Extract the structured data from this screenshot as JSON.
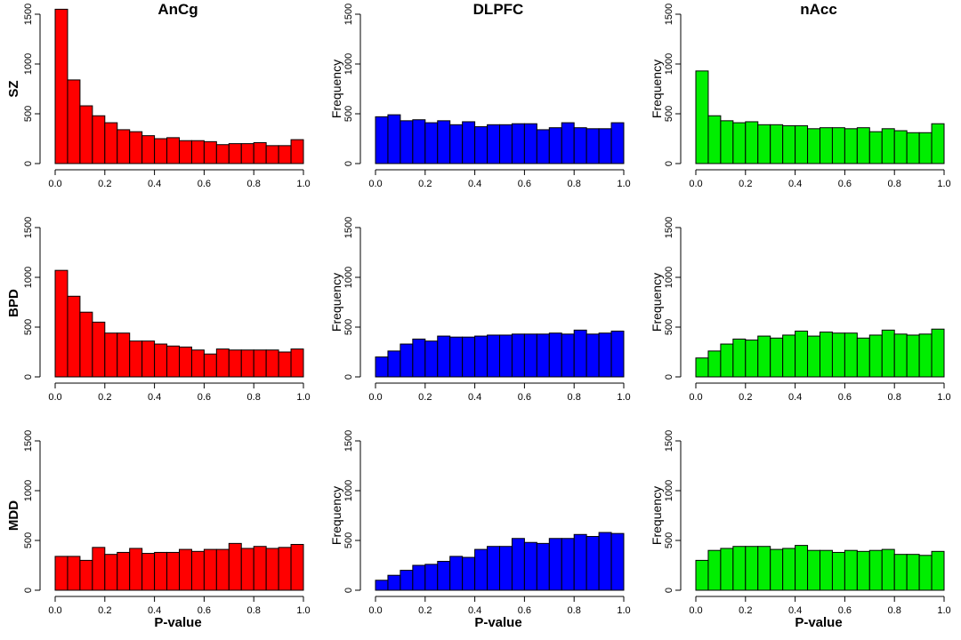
{
  "figure": {
    "column_titles": [
      "AnCg",
      "DLPFC",
      "nAcc"
    ],
    "row_labels": [
      "SZ",
      "BPD",
      "MDD"
    ],
    "xlabel": "P-value",
    "ylabel": "Frequency",
    "x_ticks": [
      "0.0",
      "0.2",
      "0.4",
      "0.6",
      "0.8",
      "1.0"
    ],
    "y_ticks": [
      "0",
      "500",
      "1000",
      "1500"
    ],
    "colors": {
      "AnCg": "#ff0000",
      "DLPFC": "#0000ff",
      "nAcc": "#00ee00"
    }
  },
  "chart_data": [
    {
      "type": "bar",
      "row": "SZ",
      "column": "AnCg",
      "color": "#ff0000",
      "xlim": [
        0,
        1
      ],
      "ylim": [
        0,
        1500
      ],
      "bin_width": 0.05,
      "values": [
        1550,
        840,
        580,
        480,
        410,
        340,
        320,
        280,
        250,
        260,
        230,
        230,
        220,
        190,
        200,
        200,
        210,
        180,
        180,
        240
      ]
    },
    {
      "type": "bar",
      "row": "SZ",
      "column": "DLPFC",
      "color": "#0000ff",
      "xlim": [
        0,
        1
      ],
      "ylim": [
        0,
        1500
      ],
      "bin_width": 0.05,
      "values": [
        470,
        490,
        430,
        440,
        410,
        430,
        390,
        420,
        370,
        390,
        390,
        400,
        400,
        340,
        360,
        410,
        360,
        350,
        350,
        410
      ]
    },
    {
      "type": "bar",
      "row": "SZ",
      "column": "nAcc",
      "color": "#00ee00",
      "xlim": [
        0,
        1
      ],
      "ylim": [
        0,
        1500
      ],
      "bin_width": 0.05,
      "values": [
        930,
        480,
        430,
        410,
        420,
        390,
        390,
        380,
        380,
        350,
        360,
        360,
        350,
        360,
        320,
        350,
        330,
        310,
        310,
        400
      ]
    },
    {
      "type": "bar",
      "row": "BPD",
      "column": "AnCg",
      "color": "#ff0000",
      "xlim": [
        0,
        1
      ],
      "ylim": [
        0,
        1500
      ],
      "bin_width": 0.05,
      "values": [
        1070,
        810,
        650,
        550,
        440,
        440,
        360,
        360,
        330,
        310,
        300,
        270,
        230,
        280,
        270,
        270,
        270,
        270,
        250,
        280
      ]
    },
    {
      "type": "bar",
      "row": "BPD",
      "column": "DLPFC",
      "color": "#0000ff",
      "xlim": [
        0,
        1
      ],
      "ylim": [
        0,
        1500
      ],
      "bin_width": 0.05,
      "values": [
        200,
        260,
        330,
        380,
        360,
        410,
        400,
        400,
        410,
        420,
        420,
        430,
        430,
        430,
        440,
        430,
        470,
        430,
        440,
        460
      ]
    },
    {
      "type": "bar",
      "row": "BPD",
      "column": "nAcc",
      "color": "#00ee00",
      "xlim": [
        0,
        1
      ],
      "ylim": [
        0,
        1500
      ],
      "bin_width": 0.05,
      "values": [
        190,
        260,
        330,
        380,
        370,
        410,
        390,
        420,
        460,
        410,
        450,
        440,
        440,
        390,
        420,
        470,
        430,
        420,
        430,
        480
      ]
    },
    {
      "type": "bar",
      "row": "MDD",
      "column": "AnCg",
      "color": "#ff0000",
      "xlim": [
        0,
        1
      ],
      "ylim": [
        0,
        1500
      ],
      "bin_width": 0.05,
      "values": [
        340,
        340,
        300,
        430,
        360,
        380,
        420,
        370,
        380,
        380,
        410,
        390,
        410,
        410,
        470,
        420,
        440,
        420,
        430,
        460
      ]
    },
    {
      "type": "bar",
      "row": "MDD",
      "column": "DLPFC",
      "color": "#0000ff",
      "xlim": [
        0,
        1
      ],
      "ylim": [
        0,
        1500
      ],
      "bin_width": 0.05,
      "values": [
        100,
        150,
        200,
        250,
        260,
        290,
        340,
        330,
        410,
        440,
        440,
        520,
        480,
        470,
        520,
        520,
        560,
        540,
        580,
        570
      ]
    },
    {
      "type": "bar",
      "row": "MDD",
      "column": "nAcc",
      "color": "#00ee00",
      "xlim": [
        0,
        1
      ],
      "ylim": [
        0,
        1500
      ],
      "bin_width": 0.05,
      "values": [
        300,
        400,
        420,
        440,
        440,
        440,
        410,
        420,
        450,
        400,
        400,
        380,
        400,
        390,
        400,
        410,
        360,
        360,
        350,
        390
      ]
    }
  ]
}
